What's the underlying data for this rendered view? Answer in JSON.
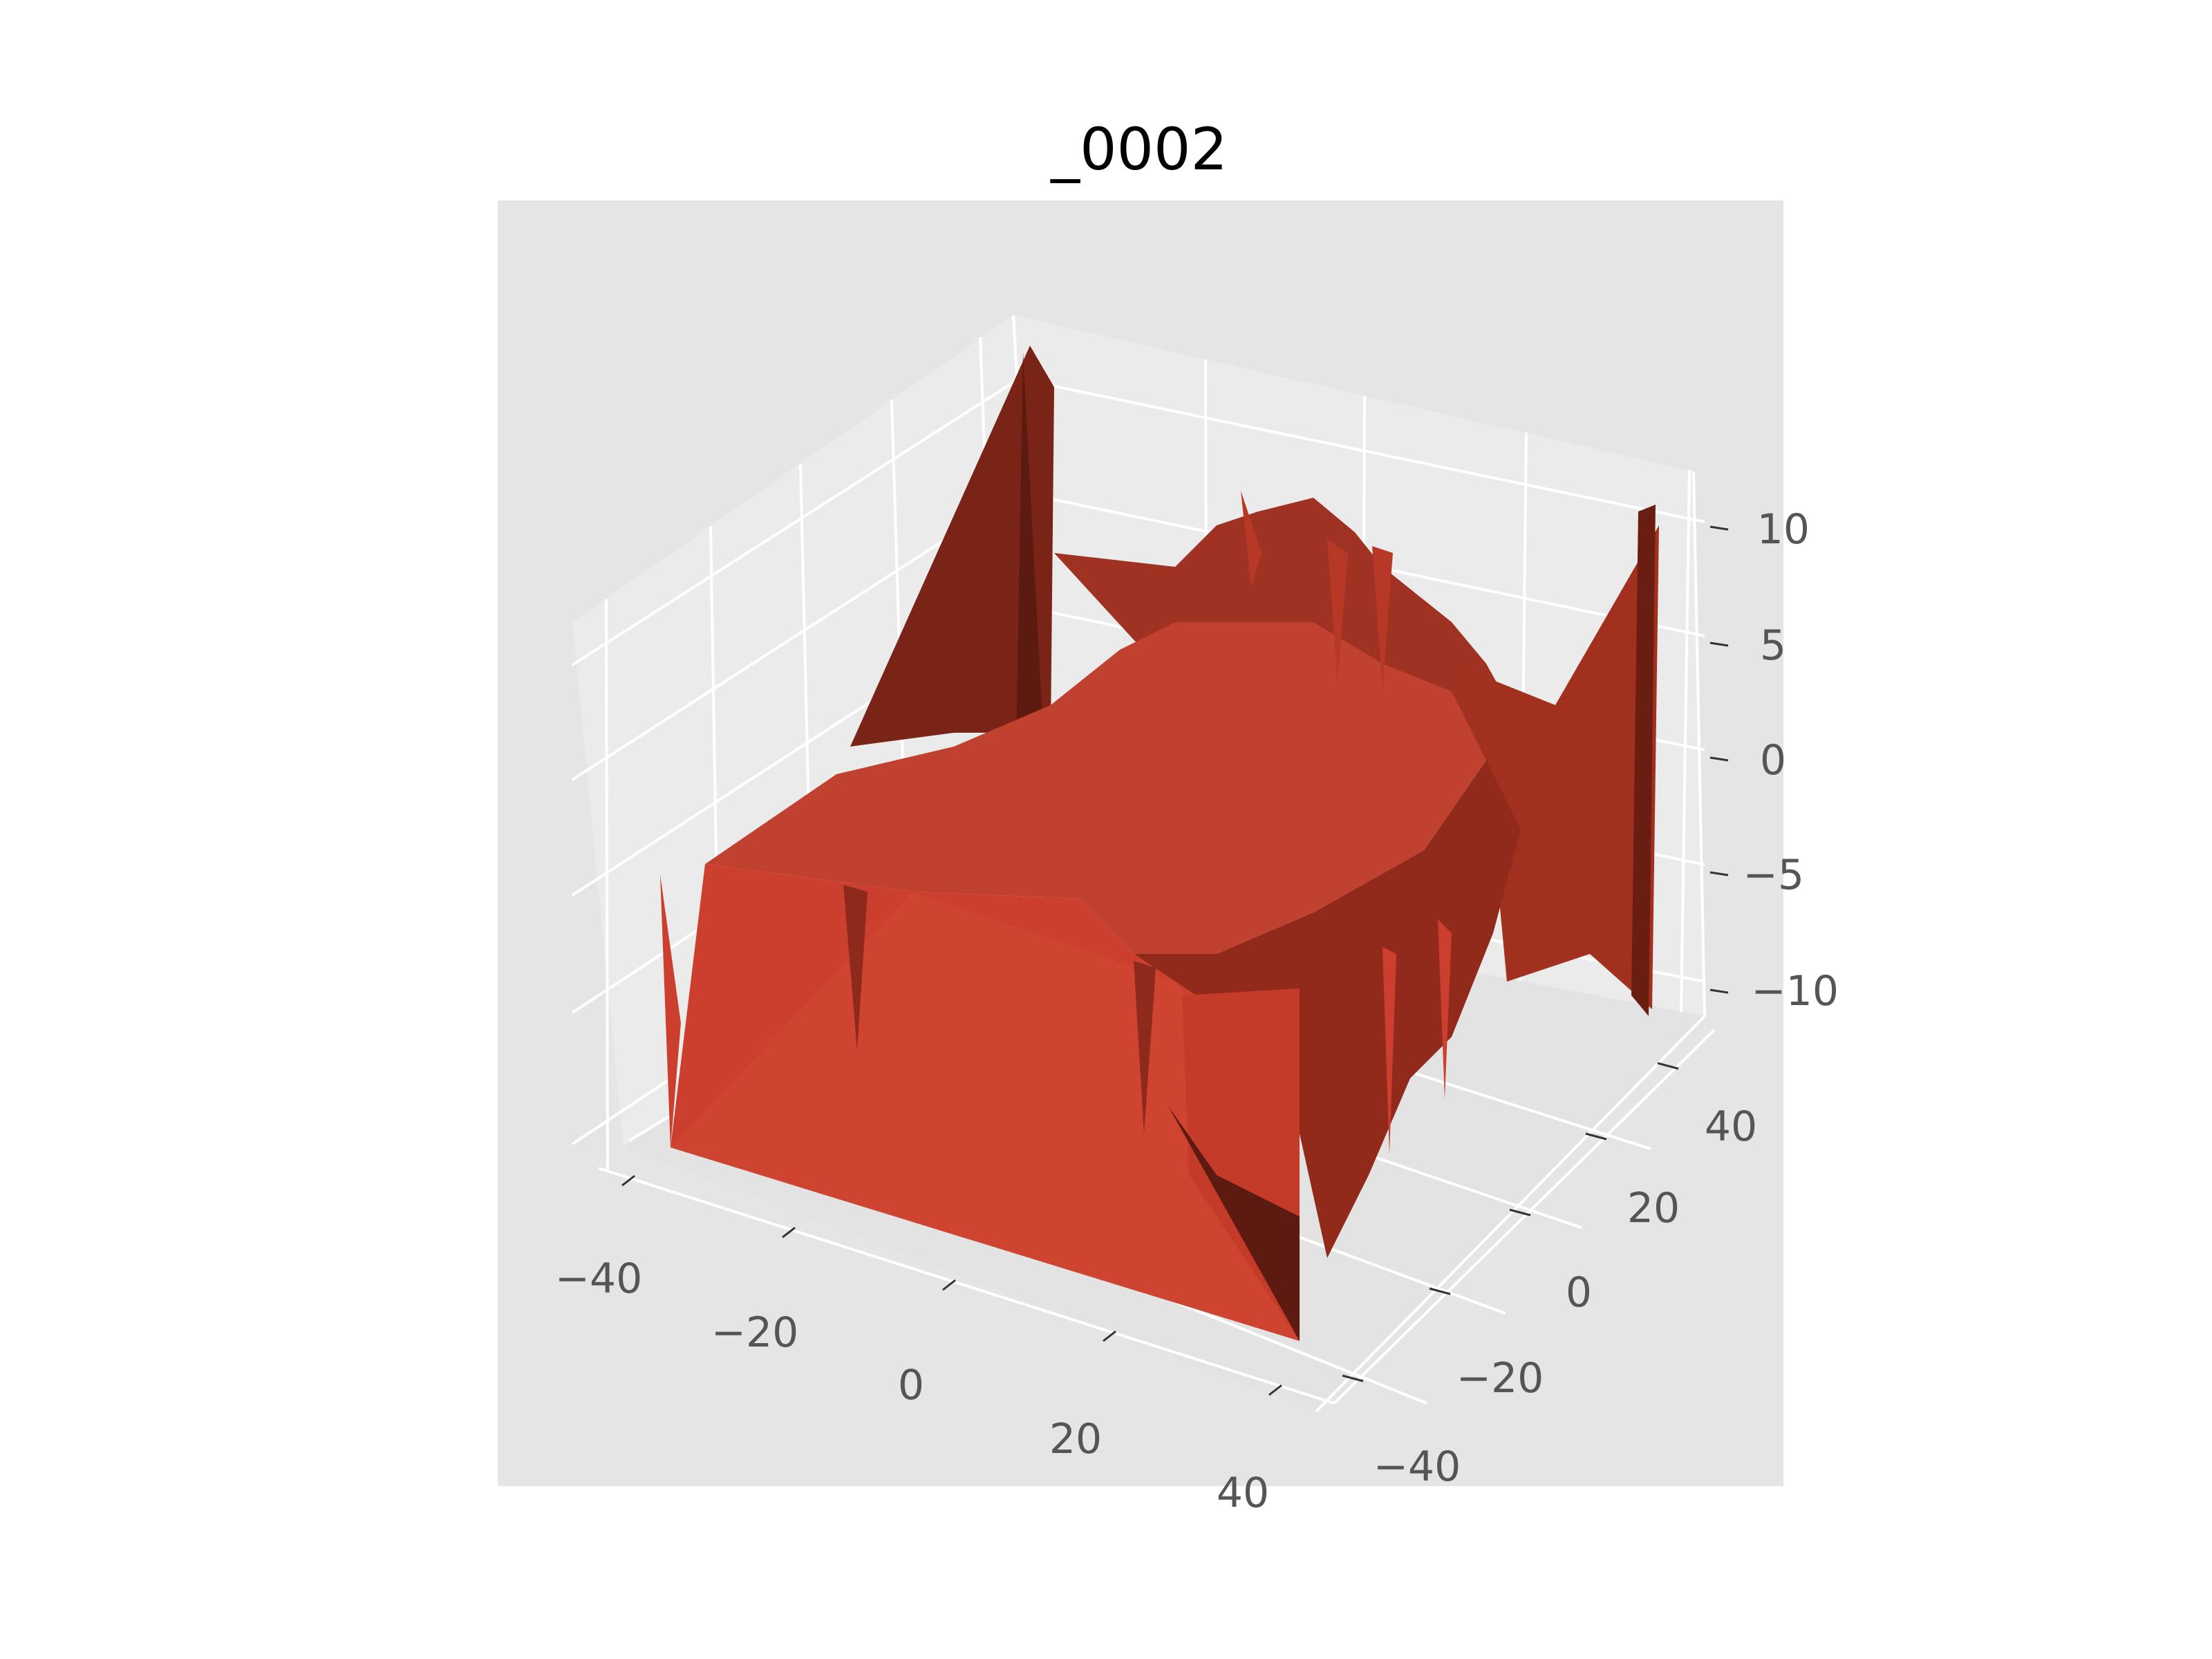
{
  "chart_data": {
    "type": "surface3d",
    "title": "_0002",
    "xlabel": "",
    "ylabel": "",
    "zlabel": "",
    "x_ticks": [
      "−40",
      "−20",
      "0",
      "20",
      "40"
    ],
    "y_ticks": [
      "−40",
      "−20",
      "0",
      "20",
      "40"
    ],
    "z_ticks": [
      "−10",
      "−5",
      "0",
      "5",
      "10"
    ],
    "xlim": [
      -45,
      45
    ],
    "ylim": [
      -45,
      45
    ],
    "zlim": [
      -13,
      13
    ],
    "grid": true,
    "surface_color": "#cc3f2e",
    "surface_plateau_z": 0,
    "surface_base_z": -10,
    "corner_peaks": [
      {
        "x": -40,
        "y": 40,
        "z": 13
      },
      {
        "x": 40,
        "y": 40,
        "z": 10
      }
    ]
  }
}
